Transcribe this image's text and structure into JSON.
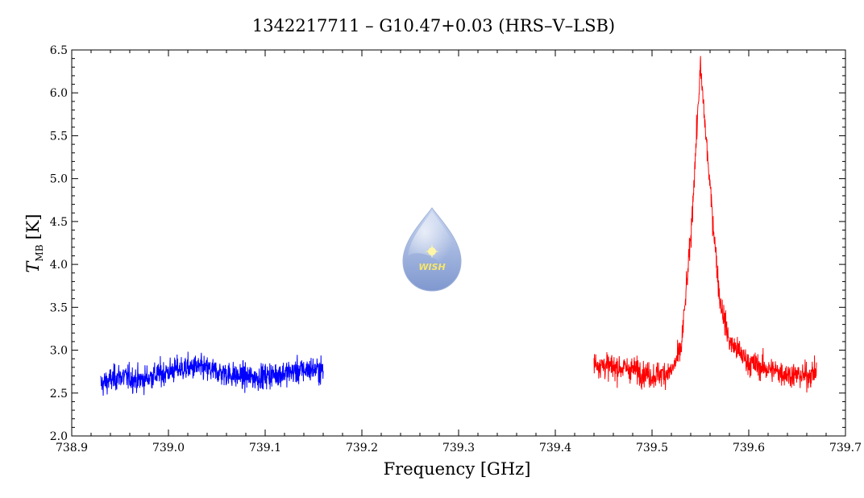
{
  "chart_data": {
    "type": "line",
    "title": "1342217711 – G10.47+0.03 (HRS–V–LSB)",
    "xlabel": "Frequency [GHz]",
    "ylabel_main": "T",
    "ylabel_sub": "MB",
    "ylabel_unit": "[K]",
    "xlim": [
      738.9,
      739.7
    ],
    "ylim": [
      2.0,
      6.5
    ],
    "xticks": [
      "738.9",
      "739.0",
      "739.1",
      "739.2",
      "739.3",
      "739.4",
      "739.5",
      "739.6",
      "739.7"
    ],
    "yticks": [
      "2.0",
      "2.5",
      "3.0",
      "3.5",
      "4.0",
      "4.5",
      "5.0",
      "5.5",
      "6.0",
      "6.5"
    ],
    "grid": false,
    "series": [
      {
        "color": "#0000ff",
        "x_range": [
          738.93,
          739.16
        ],
        "baseline": 2.72,
        "noise_rms": 0.14,
        "points": [
          [
            738.93,
            2.6
          ],
          [
            738.95,
            2.7
          ],
          [
            738.97,
            2.65
          ],
          [
            738.99,
            2.72
          ],
          [
            739.01,
            2.78
          ],
          [
            739.03,
            2.8
          ],
          [
            739.05,
            2.75
          ],
          [
            739.07,
            2.7
          ],
          [
            739.09,
            2.68
          ],
          [
            739.11,
            2.72
          ],
          [
            739.13,
            2.75
          ],
          [
            739.15,
            2.78
          ],
          [
            739.16,
            2.76
          ]
        ]
      },
      {
        "color": "#ff0000",
        "x_range": [
          739.44,
          739.67
        ],
        "baseline": 2.75,
        "noise_rms": 0.14,
        "peak": {
          "center": 739.55,
          "height": 6.3
        },
        "points": [
          [
            739.44,
            2.85
          ],
          [
            739.46,
            2.8
          ],
          [
            739.48,
            2.78
          ],
          [
            739.5,
            2.7
          ],
          [
            739.52,
            2.75
          ],
          [
            739.53,
            3.0
          ],
          [
            739.54,
            4.3
          ],
          [
            739.55,
            6.3
          ],
          [
            739.56,
            4.9
          ],
          [
            739.57,
            3.6
          ],
          [
            739.58,
            3.1
          ],
          [
            739.6,
            2.85
          ],
          [
            739.62,
            2.78
          ],
          [
            739.64,
            2.72
          ],
          [
            739.66,
            2.7
          ],
          [
            739.67,
            2.75
          ]
        ]
      }
    ]
  },
  "logo": {
    "text": "WISH",
    "fill_top": "#c9d6f0",
    "fill_bottom": "#7f98cf",
    "star_color": "#fff6a8"
  }
}
